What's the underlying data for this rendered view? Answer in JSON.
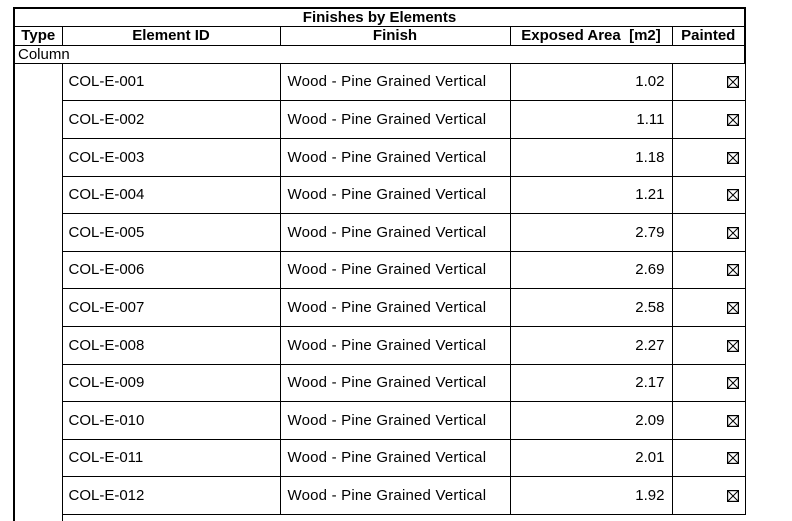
{
  "schedule": {
    "title": "Finishes by Elements",
    "columns": [
      "Type",
      "Element ID",
      "Finish",
      "Exposed Area  [m2]",
      "Painted"
    ],
    "group_label": "Column",
    "checkbox_icon": "checked-box-x",
    "colors": {
      "border": "#000000",
      "text": "#000000",
      "background": "#ffffff"
    },
    "rows": [
      {
        "element_id": "COL-E-001",
        "finish": "Wood - Pine Grained Vertical",
        "exposed_area": "1.02",
        "painted": true
      },
      {
        "element_id": "COL-E-002",
        "finish": "Wood - Pine Grained Vertical",
        "exposed_area": "1.11",
        "painted": true
      },
      {
        "element_id": "COL-E-003",
        "finish": "Wood - Pine Grained Vertical",
        "exposed_area": "1.18",
        "painted": true
      },
      {
        "element_id": "COL-E-004",
        "finish": "Wood - Pine Grained Vertical",
        "exposed_area": "1.21",
        "painted": true
      },
      {
        "element_id": "COL-E-005",
        "finish": "Wood - Pine Grained Vertical",
        "exposed_area": "2.79",
        "painted": true
      },
      {
        "element_id": "COL-E-006",
        "finish": "Wood - Pine Grained Vertical",
        "exposed_area": "2.69",
        "painted": true
      },
      {
        "element_id": "COL-E-007",
        "finish": "Wood - Pine Grained Vertical",
        "exposed_area": "2.58",
        "painted": true
      },
      {
        "element_id": "COL-E-008",
        "finish": "Wood - Pine Grained Vertical",
        "exposed_area": "2.27",
        "painted": true
      },
      {
        "element_id": "COL-E-009",
        "finish": "Wood - Pine Grained Vertical",
        "exposed_area": "2.17",
        "painted": true
      },
      {
        "element_id": "COL-E-010",
        "finish": "Wood - Pine Grained Vertical",
        "exposed_area": "2.09",
        "painted": true
      },
      {
        "element_id": "COL-E-011",
        "finish": "Wood - Pine Grained Vertical",
        "exposed_area": "2.01",
        "painted": true
      },
      {
        "element_id": "COL-E-012",
        "finish": "Wood - Pine Grained Vertical",
        "exposed_area": "1.92",
        "painted": true
      }
    ]
  }
}
